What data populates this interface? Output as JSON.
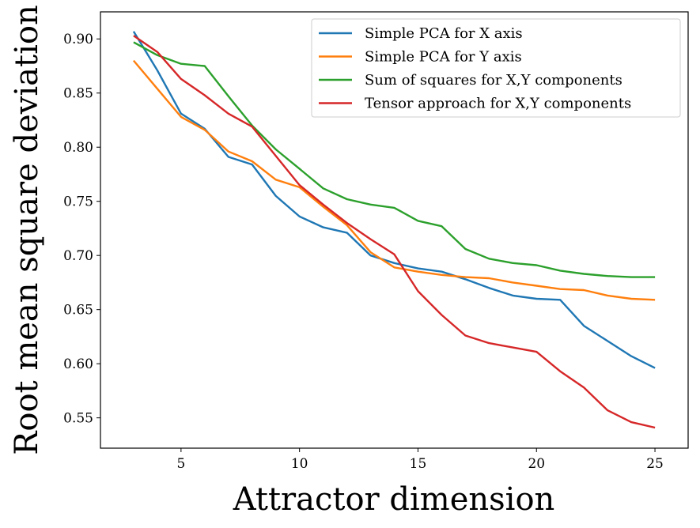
{
  "chart_data": {
    "type": "line",
    "xlabel": "Attractor dimension",
    "ylabel": "Root mean square deviation",
    "xlim": [
      1.6,
      26.4
    ],
    "ylim": [
      0.522,
      0.925
    ],
    "xticks": [
      "5",
      "10",
      "15",
      "20",
      "25"
    ],
    "yticks": [
      "0.55",
      "0.60",
      "0.65",
      "0.70",
      "0.75",
      "0.80",
      "0.85",
      "0.90"
    ],
    "legend_position": "top-right",
    "grid": false,
    "x": [
      3,
      4,
      5,
      6,
      7,
      8,
      9,
      10,
      11,
      12,
      13,
      14,
      15,
      16,
      17,
      18,
      19,
      20,
      21,
      22,
      23,
      24,
      25
    ],
    "series": [
      {
        "name": "Simple PCA for X axis",
        "color": "#1f77b4",
        "values": [
          0.907,
          0.871,
          0.831,
          0.817,
          0.791,
          0.784,
          0.755,
          0.736,
          0.726,
          0.721,
          0.7,
          0.693,
          0.688,
          0.685,
          0.678,
          0.67,
          0.663,
          0.66,
          0.659,
          0.635,
          0.621,
          0.607,
          0.596
        ]
      },
      {
        "name": "Simple PCA for Y axis",
        "color": "#ff7f0e",
        "values": [
          0.88,
          0.854,
          0.828,
          0.816,
          0.796,
          0.787,
          0.77,
          0.763,
          0.745,
          0.728,
          0.703,
          0.689,
          0.685,
          0.682,
          0.68,
          0.679,
          0.675,
          0.672,
          0.669,
          0.668,
          0.663,
          0.66,
          0.659
        ]
      },
      {
        "name": "Sum of squares for X,Y components",
        "color": "#2ca02c",
        "values": [
          0.897,
          0.885,
          0.877,
          0.875,
          0.847,
          0.82,
          0.798,
          0.78,
          0.762,
          0.752,
          0.747,
          0.744,
          0.732,
          0.727,
          0.706,
          0.697,
          0.693,
          0.691,
          0.686,
          0.683,
          0.681,
          0.68,
          0.68
        ]
      },
      {
        "name": "Tensor approach for X,Y components",
        "color": "#d62728",
        "values": [
          0.903,
          0.888,
          0.863,
          0.848,
          0.831,
          0.819,
          0.792,
          0.765,
          0.747,
          0.73,
          0.715,
          0.701,
          0.667,
          0.645,
          0.626,
          0.619,
          0.615,
          0.611,
          0.593,
          0.578,
          0.557,
          0.546,
          0.541
        ]
      }
    ]
  }
}
